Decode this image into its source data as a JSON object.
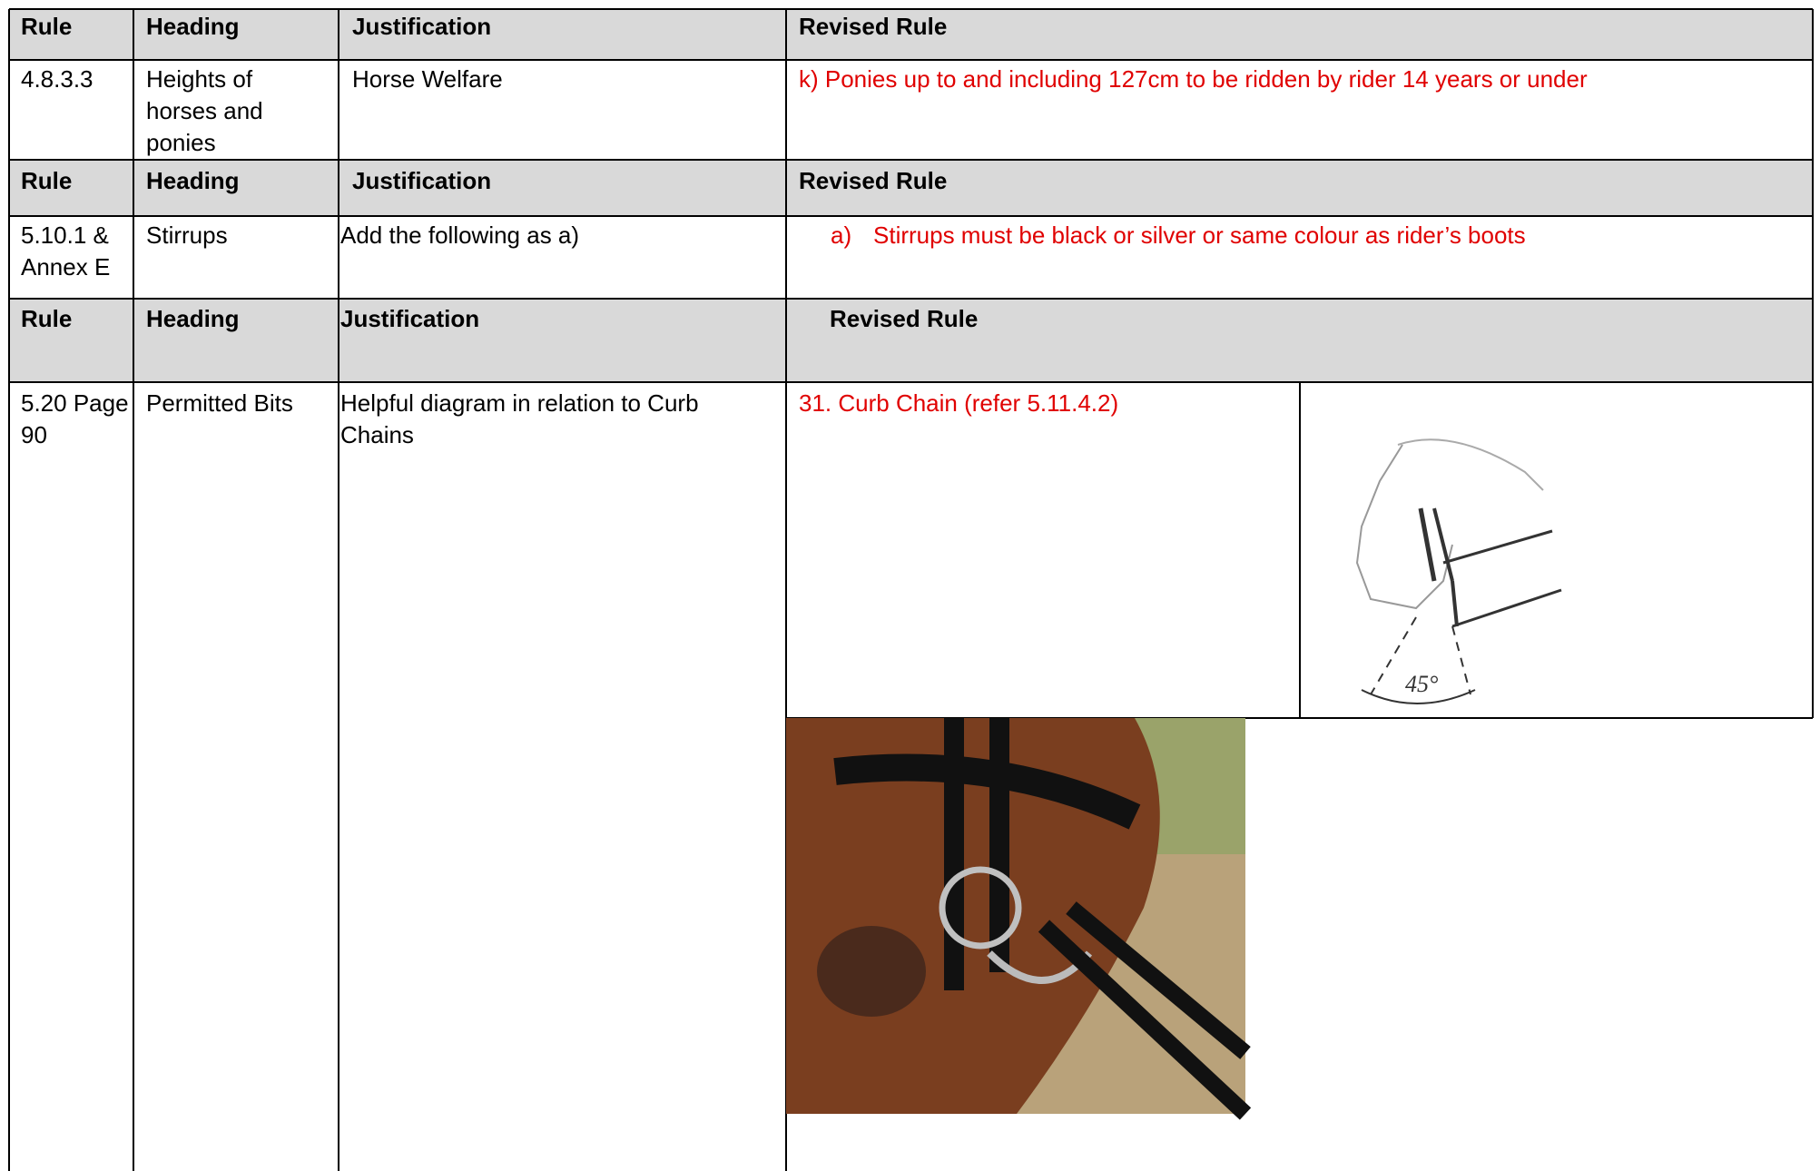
{
  "table": {
    "sections": [
      {
        "header": [
          "Rule",
          "Heading",
          "Justification",
          "Revised Rule"
        ],
        "row": {
          "rule": "4.8.3.3",
          "heading": "Heights of horses and ponies",
          "justification": "Horse Welfare",
          "revised_rule": "k) Ponies up to and including 127cm to be ridden by rider 14 years or under"
        }
      },
      {
        "header": [
          "Rule",
          "Heading",
          "Justification",
          "Revised Rule"
        ],
        "row": {
          "rule": "5.10.1 & Annex E",
          "heading": "Stirrups",
          "justification": "Add the following as a)",
          "revised_rule_marker": "a)",
          "revised_rule": "Stirrups must be black or silver or same colour as rider’s boots"
        }
      },
      {
        "header": [
          "Rule",
          "Heading",
          "Justification",
          "Revised Rule"
        ],
        "row": {
          "rule": "5.20 Page 90",
          "heading": "Permitted Bits",
          "justification": "Helpful diagram in relation to Curb Chains",
          "revised_rule": "31. Curb Chain (refer 5.11.4.2)",
          "diagram_label": "45°"
        }
      }
    ]
  }
}
